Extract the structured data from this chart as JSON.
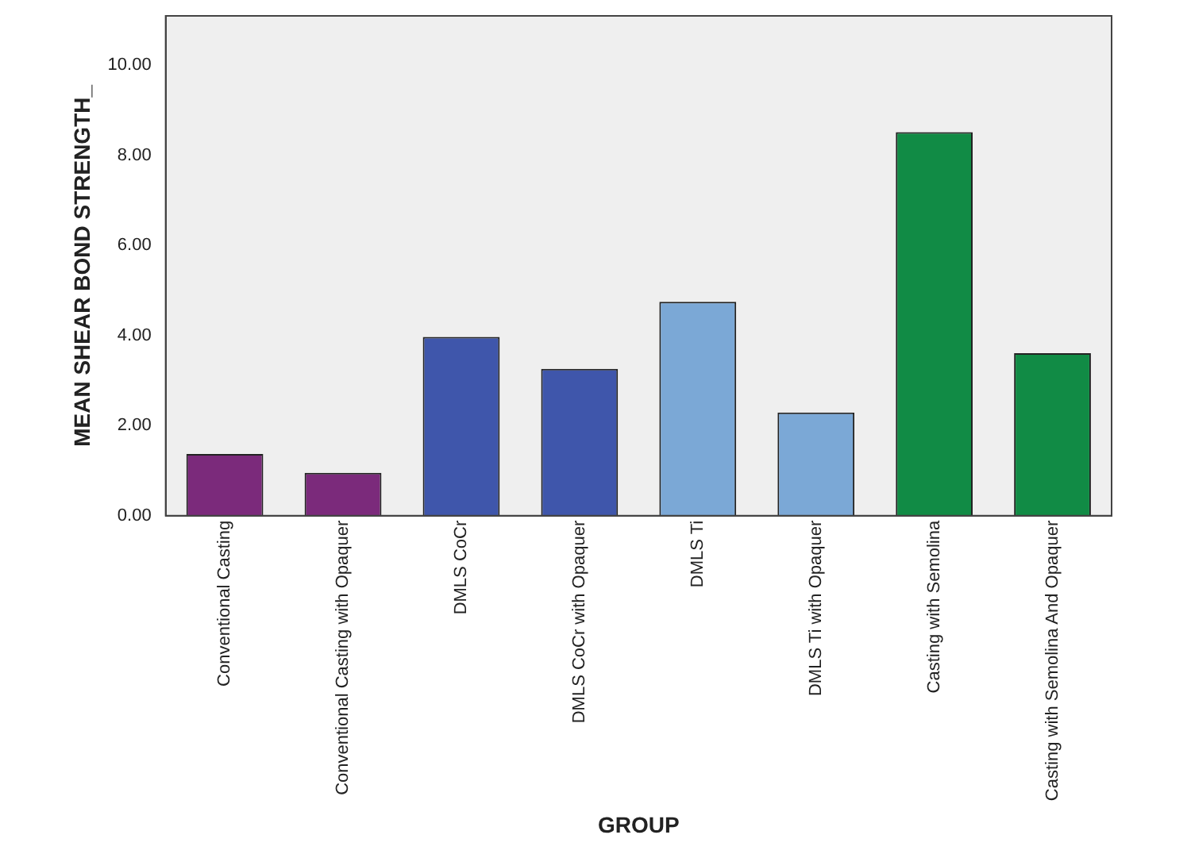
{
  "chart_data": {
    "type": "bar",
    "xlabel": "GROUP",
    "ylabel": "MEAN SHEAR BOND STRENGTH_",
    "categories": [
      "Conventional Casting",
      "Conventional Casting with Opaquer",
      "DMLS CoCr",
      "DMLS CoCr with Opaquer",
      "DMLS Ti",
      "DMLS Ti with Opaquer",
      "Casting with Semolina",
      "Casting with Semolina And Opaquer"
    ],
    "values": [
      1.37,
      0.95,
      3.97,
      3.26,
      4.75,
      2.29,
      8.52,
      3.61
    ],
    "colors": [
      "#7b2a7b",
      "#7b2a7b",
      "#3f56ab",
      "#3f56ab",
      "#7ba8d6",
      "#7ba8d6",
      "#118b45",
      "#118b45"
    ],
    "ylim": [
      0,
      11.1
    ],
    "yticks": [
      {
        "value": 0,
        "label": "0.00"
      },
      {
        "value": 2,
        "label": "2.00"
      },
      {
        "value": 4,
        "label": "4.00"
      },
      {
        "value": 6,
        "label": "6.00"
      },
      {
        "value": 8,
        "label": "8.00"
      },
      {
        "value": 10,
        "label": "10.00"
      }
    ],
    "grid": false,
    "legend": false
  }
}
